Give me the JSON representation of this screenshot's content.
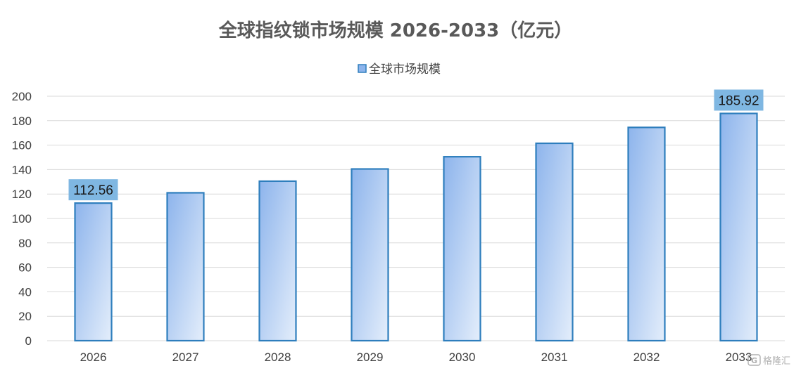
{
  "chart_data": {
    "type": "bar",
    "title": "全球指纹锁市场规模 2026-2033（亿元）",
    "categories": [
      "2026",
      "2027",
      "2028",
      "2029",
      "2030",
      "2031",
      "2032",
      "2033"
    ],
    "series": [
      {
        "name": "全球市场规模",
        "values": [
          112.56,
          121,
          130.5,
          140.5,
          150.5,
          161.5,
          174.5,
          185.92
        ],
        "data_labels": [
          "112.56",
          "",
          "",
          "",
          "",
          "",
          "",
          "185.92"
        ]
      }
    ],
    "ylim": [
      0,
      200
    ],
    "yticks": [
      0,
      20,
      40,
      60,
      80,
      100,
      120,
      140,
      160,
      180,
      200
    ],
    "grid": true,
    "legend_position": "top-center"
  },
  "colors": {
    "bar_fill_top_left": "#8db4ec",
    "bar_fill_bottom_right": "#e4eefb",
    "bar_border": "#2e7ebd",
    "label_bg": "#7fb7e2",
    "grid": "#d9d9d9",
    "axis_text": "#404040",
    "title": "#595959"
  },
  "watermark": {
    "text": "格隆汇",
    "icon": "gelonghui-logo-icon"
  }
}
